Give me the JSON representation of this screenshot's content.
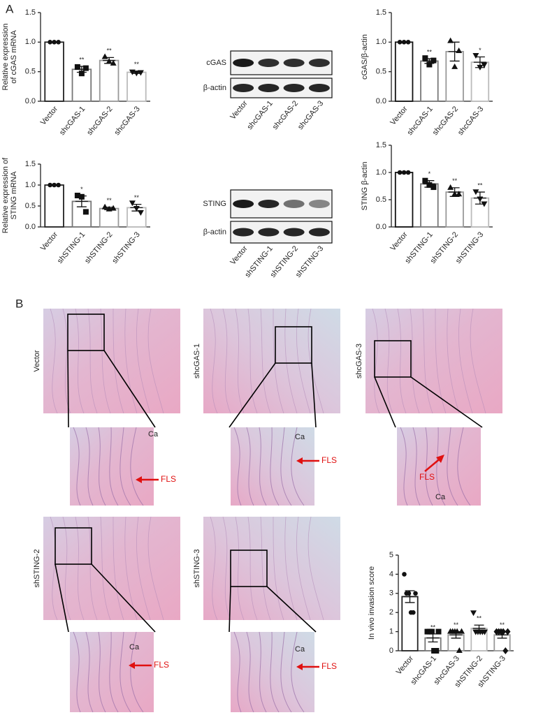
{
  "panels": {
    "a": "A",
    "b": "B"
  },
  "chart_data": [
    {
      "type": "bar",
      "ylabel": [
        "Relative expression",
        "of cGAS mRNA"
      ],
      "categories": [
        "Vector",
        "shcGAS-1",
        "shcGAS-2",
        "shcGAS-3"
      ],
      "values": [
        1.0,
        0.54,
        0.69,
        0.49
      ],
      "errors": [
        0,
        0.05,
        0.05,
        0.02
      ],
      "points": [
        [
          1,
          1,
          1
        ],
        [
          0.58,
          0.47,
          0.56
        ],
        [
          0.75,
          0.67,
          0.64
        ],
        [
          0.5,
          0.48,
          0.49
        ]
      ],
      "significance": [
        null,
        "**",
        "**",
        "**"
      ],
      "markers": [
        "circle",
        "square",
        "triangle",
        "triangle-down"
      ],
      "colors": [
        "#222",
        "#777",
        "#999",
        "#bbb"
      ],
      "ylim": [
        0,
        1.5
      ],
      "yticks": [
        {
          "value": 0,
          "label": "0.0"
        },
        0.5,
        {
          "value": 1,
          "label": "1.0"
        },
        1.5
      ]
    },
    {
      "type": "bar",
      "ylabel": [
        "cGAS/β-actin"
      ],
      "categories": [
        "Vector",
        "shcGAS-1",
        "shcGAS-2",
        "shcGAS-3"
      ],
      "values": [
        1.0,
        0.68,
        0.84,
        0.66
      ],
      "errors": [
        0.01,
        0.04,
        0.16,
        0.09
      ],
      "points": [
        [
          1,
          1,
          1
        ],
        [
          0.73,
          0.62,
          0.69
        ],
        [
          1.02,
          0.58,
          0.85
        ],
        [
          0.78,
          0.58,
          0.62
        ]
      ],
      "significance": [
        null,
        "**",
        null,
        "*"
      ],
      "markers": [
        "circle",
        "square",
        "triangle",
        "triangle-down"
      ],
      "colors": [
        "#111",
        "#777",
        "#999",
        "#bbb"
      ],
      "ylim": [
        0,
        1.5
      ],
      "yticks": [
        {
          "value": 0,
          "label": "0.0"
        },
        0.5,
        {
          "value": 1,
          "label": "1.0"
        },
        1.5
      ]
    },
    {
      "type": "bar",
      "ylabel": [
        "Relative expression of",
        "STING mRNA"
      ],
      "categories": [
        "Vector",
        "shSTING-1",
        "shSTING-2",
        "shSTING-3"
      ],
      "values": [
        1.0,
        0.61,
        0.44,
        0.46
      ],
      "errors": [
        0,
        0.13,
        0.03,
        0.08
      ],
      "points": [
        [
          1,
          1,
          1
        ],
        [
          0.75,
          0.72,
          0.36
        ],
        [
          0.47,
          0.42,
          0.44
        ],
        [
          0.58,
          0.45,
          0.35
        ]
      ],
      "significance": [
        null,
        "*",
        "**",
        "**"
      ],
      "markers": [
        "circle",
        "square",
        "triangle",
        "triangle-down"
      ],
      "colors": [
        "#222",
        "#777",
        "#999",
        "#bbb"
      ],
      "ylim": [
        0,
        1.5
      ],
      "yticks": [
        {
          "value": 0,
          "label": "0.0"
        },
        0.5,
        {
          "value": 1,
          "label": "1.0"
        },
        1.5
      ]
    },
    {
      "type": "bar",
      "ylabel": [
        "STING β-actin"
      ],
      "categories": [
        "Vector",
        "shSTING-1",
        "shSTING-2",
        "shSTING-3"
      ],
      "values": [
        1.0,
        0.79,
        0.64,
        0.53
      ],
      "errors": [
        0.01,
        0.06,
        0.08,
        0.11
      ],
      "points": [
        [
          1,
          1,
          1
        ],
        [
          0.85,
          0.77,
          0.73
        ],
        [
          0.72,
          0.6,
          0.6
        ],
        [
          0.65,
          0.52,
          0.43
        ]
      ],
      "significance": [
        null,
        "*",
        "**",
        "**"
      ],
      "markers": [
        "circle",
        "square",
        "triangle",
        "triangle-down"
      ],
      "colors": [
        "#111",
        "#777",
        "#999",
        "#bbb"
      ],
      "ylim": [
        0,
        1.5
      ],
      "yticks": [
        {
          "value": 0,
          "label": "0.0"
        },
        0.5,
        {
          "value": 1,
          "label": "1.0"
        },
        1.5
      ]
    },
    {
      "type": "bar",
      "ylabel": [
        "In vivo invasion score"
      ],
      "categories": [
        "Vector",
        "shcGAS-1",
        "shcGAS-3",
        "shSTING-2",
        "shSTING-3"
      ],
      "values": [
        2.83,
        0.67,
        0.83,
        1.17,
        0.83
      ],
      "errors": [
        0.31,
        0.21,
        0.17,
        0.17,
        0.17
      ],
      "points": [
        [
          4,
          3,
          3,
          2,
          2,
          3
        ],
        [
          1,
          1,
          1,
          0,
          0,
          1
        ],
        [
          1,
          1,
          1,
          1,
          0,
          1
        ],
        [
          2,
          1,
          1,
          1,
          1,
          1
        ],
        [
          1,
          1,
          1,
          1,
          0,
          1
        ]
      ],
      "significance": [
        null,
        "**",
        "**",
        "**",
        "**"
      ],
      "markers": [
        "circle",
        "square",
        "triangle",
        "triangle-down",
        "diamond"
      ],
      "colors": [
        "#222",
        "#777",
        "#999",
        "#bbb",
        "#999"
      ],
      "ylim": [
        0,
        5
      ],
      "yticks": [
        0,
        1,
        2,
        3,
        4,
        5
      ]
    }
  ],
  "blots": [
    {
      "bands": [
        "cGAS",
        "β-actin"
      ],
      "lanes": [
        "Vector",
        "shcGAS-1",
        "shcGAS-2",
        "shcGAS-3"
      ]
    },
    {
      "bands": [
        "STING",
        "β-actin"
      ],
      "lanes": [
        "Vector",
        "shSTING-1",
        "shSTING-2",
        "shSTING-3"
      ]
    }
  ],
  "histology": [
    {
      "label": "Vector",
      "ca": "Ca",
      "fls": "FLS"
    },
    {
      "label": "shcGAS-1",
      "ca": "Ca",
      "fls": "FLS"
    },
    {
      "label": "shcGAS-3",
      "ca": "Ca",
      "fls": "FLS"
    },
    {
      "label": "shSTING-2",
      "ca": "Ca",
      "fls": "FLS"
    },
    {
      "label": "shSTING-3",
      "ca": "Ca",
      "fls": "FLS"
    }
  ]
}
